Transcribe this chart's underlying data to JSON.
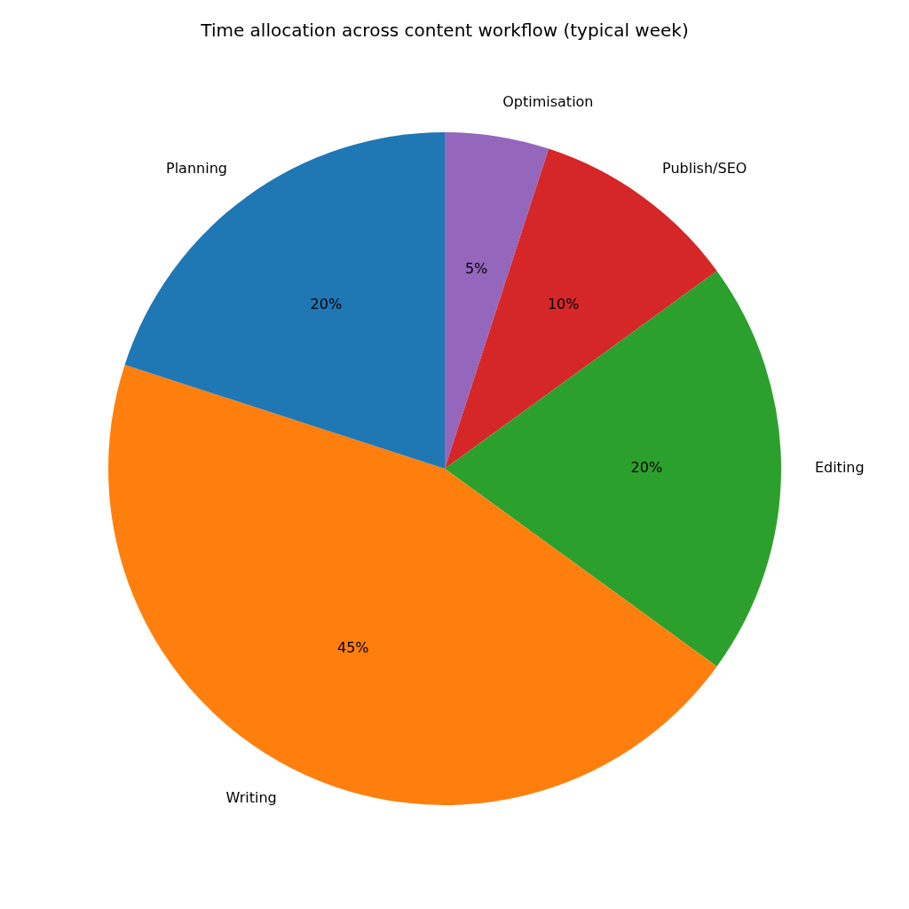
{
  "chart_data": {
    "type": "pie",
    "title": "Time allocation across content workflow (typical week)",
    "categories": [
      "Optimisation",
      "Publish/SEO",
      "Editing",
      "Writing",
      "Planning"
    ],
    "values": [
      5,
      10,
      20,
      45,
      20
    ],
    "colors": [
      "#9467bd",
      "#d62728",
      "#2ca02c",
      "#ff7f0e",
      "#1f77b4"
    ],
    "value_labels": [
      "5%",
      "10%",
      "20%",
      "45%",
      "20%"
    ]
  }
}
